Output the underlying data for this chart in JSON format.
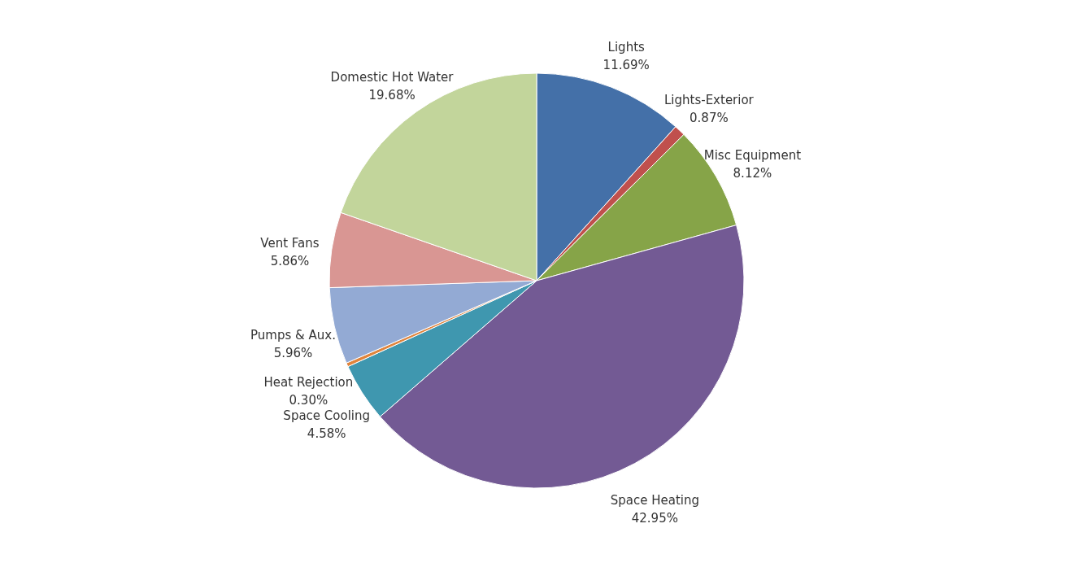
{
  "chart_data": {
    "type": "pie",
    "categories": [
      "Lights",
      "Lights-Exterior",
      "Misc Equipment",
      "Space Heating",
      "Space Cooling",
      "Heat Rejection",
      "Pumps & Aux.",
      "Vent Fans",
      "Domestic Hot Water"
    ],
    "values": [
      11.69,
      0.87,
      8.12,
      42.95,
      4.58,
      0.3,
      5.96,
      5.86,
      19.68
    ],
    "value_labels": [
      "11.69%",
      "0.87%",
      "8.12%",
      "42.95%",
      "4.58%",
      "0.30%",
      "5.96%",
      "5.86%",
      "19.68%"
    ],
    "colors": [
      "#4470a8",
      "#c0504d",
      "#86a448",
      "#735a94",
      "#3f97af",
      "#e0843c",
      "#93aad4",
      "#d99693",
      "#c2d59b"
    ]
  }
}
